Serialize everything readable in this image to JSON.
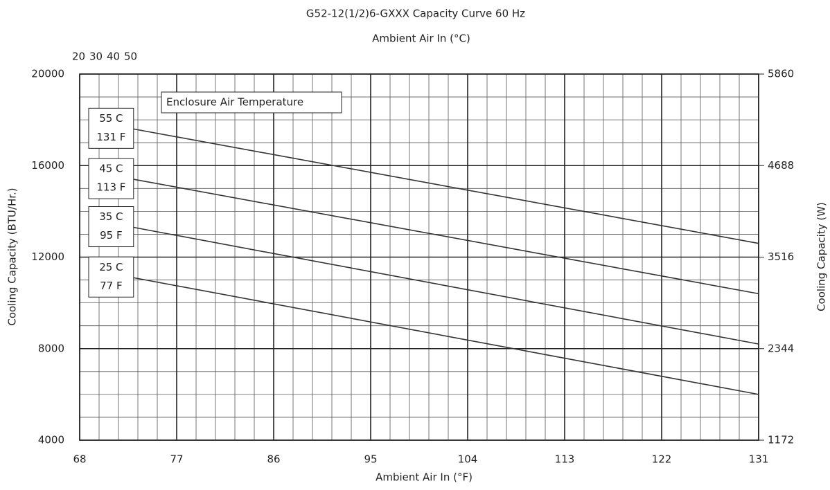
{
  "chart_data": {
    "type": "line",
    "title": "G52-12(1/2)6-GXXX Capacity Curve 60 Hz",
    "x2label": "Ambient Air In (°C)",
    "xlabel": "Ambient Air In (°F)",
    "ylabel": "Cooling Capacity (BTU/Hr.)",
    "y2label": "Cooling Capacity (W)",
    "legend_title": "Enclosure Air Temperature",
    "x": [
      73,
      131
    ],
    "series": [
      {
        "name": "55 C",
        "label2": "131 F",
        "color": "#333333",
        "values": [
          17600,
          12600
        ]
      },
      {
        "name": "45 C",
        "label2": "113 F",
        "color": "#333333",
        "values": [
          15400,
          10400
        ]
      },
      {
        "name": "35 C",
        "label2": "95 F",
        "color": "#333333",
        "values": [
          13300,
          8200
        ]
      },
      {
        "name": "25 C",
        "label2": "77 F",
        "color": "#333333",
        "values": [
          11100,
          6000
        ]
      }
    ],
    "xlim": [
      68,
      131
    ],
    "xticks": [
      68,
      77,
      86,
      95,
      104,
      113,
      122,
      131
    ],
    "x2ticks": [
      20,
      30,
      40,
      50
    ],
    "ylim": [
      4000,
      20000
    ],
    "yticks": [
      4000,
      8000,
      12000,
      16000,
      20000
    ],
    "y2lim": [
      1172,
      5860
    ],
    "y2ticks": [
      1172,
      2344,
      3516,
      4688,
      5860
    ],
    "grid": true,
    "minor_grid": {
      "x": 1.8,
      "y": 1000
    }
  }
}
